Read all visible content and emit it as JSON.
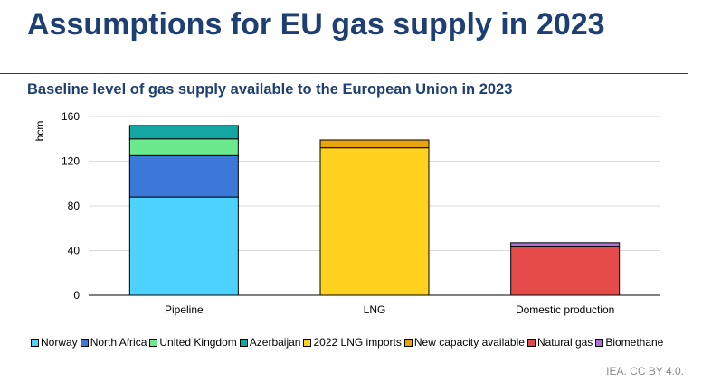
{
  "header": {
    "title": "Assumptions for EU gas supply in 2023",
    "subtitle": "Baseline level of gas supply available to the European Union in 2023"
  },
  "footer": {
    "source": "IEA. CC BY 4.0."
  },
  "chart_data": {
    "type": "bar",
    "stacked": true,
    "title": "Baseline level of gas supply available to the European Union in 2023",
    "xlabel": "",
    "ylabel": "bcm",
    "ylim": [
      0,
      160
    ],
    "yticks": [
      0,
      40,
      80,
      120,
      160
    ],
    "grid": true,
    "legend_position": "bottom",
    "categories": [
      "Pipeline",
      "LNG",
      "Domestic production"
    ],
    "series": [
      {
        "name": "Norway",
        "color": "#4dd2ff",
        "values": [
          88,
          0,
          0
        ]
      },
      {
        "name": "North Africa",
        "color": "#3c78d8",
        "values": [
          37,
          0,
          0
        ]
      },
      {
        "name": "United Kingdom",
        "color": "#6aea8c",
        "values": [
          15,
          0,
          0
        ]
      },
      {
        "name": "Azerbaijan",
        "color": "#14a6a0",
        "values": [
          12,
          0,
          0
        ]
      },
      {
        "name": "2022 LNG imports",
        "color": "#ffd21f",
        "values": [
          0,
          132,
          0
        ]
      },
      {
        "name": "New capacity available",
        "color": "#e8a40f",
        "values": [
          0,
          7,
          0
        ]
      },
      {
        "name": "Natural gas",
        "color": "#e54b48",
        "values": [
          0,
          0,
          44
        ]
      },
      {
        "name": "Biomethane",
        "color": "#b36ed6",
        "values": [
          0,
          0,
          3
        ]
      }
    ]
  }
}
